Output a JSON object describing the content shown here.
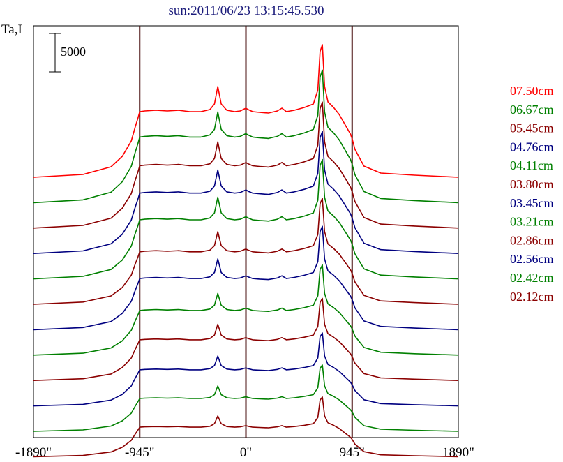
{
  "chart_data": {
    "type": "line",
    "title": "sun:2011/06/23 13:15:45.530",
    "ylabel": "Ta,I",
    "xlabel": "",
    "x_ticks": [
      "-1890\"",
      "-945\"",
      "0\"",
      "945\"",
      "1890\""
    ],
    "x_tick_values": [
      -1890,
      -945,
      0,
      945,
      1890
    ],
    "xlim": [
      -1890,
      1890
    ],
    "vertical_lines_at": [
      -945,
      0,
      945
    ],
    "scale_bar": {
      "label": "5000",
      "value": 5000
    },
    "profile_shape": {
      "x": [
        -1890,
        -1450,
        -1200,
        -1100,
        -1020,
        -985,
        -960,
        -945,
        -900,
        -800,
        -700,
        -600,
        -500,
        -400,
        -320,
        -280,
        -250,
        -220,
        -170,
        -100,
        -50,
        0,
        20,
        60,
        120,
        200,
        280,
        320,
        360,
        430,
        520,
        600,
        640,
        660,
        680,
        700,
        730,
        780,
        830,
        880,
        930,
        945,
        970,
        1050,
        1200,
        1500,
        1890
      ],
      "y": [
        0.0,
        0.04,
        0.15,
        0.3,
        0.52,
        0.72,
        0.85,
        0.94,
        0.95,
        0.96,
        0.95,
        0.96,
        0.94,
        0.94,
        0.97,
        1.05,
        1.3,
        1.05,
        0.96,
        0.94,
        0.95,
        0.99,
        0.97,
        0.94,
        0.93,
        0.92,
        0.95,
        0.99,
        0.94,
        0.96,
        1.0,
        1.05,
        1.25,
        1.8,
        1.9,
        1.3,
        1.08,
        1.0,
        0.9,
        0.76,
        0.62,
        0.55,
        0.4,
        0.16,
        0.06,
        0.03,
        0.0
      ]
    },
    "series": [
      {
        "name": "07.50cm",
        "color": "#ff0000",
        "amplitude": 1.0,
        "baseline": 0.0
      },
      {
        "name": "06.67cm",
        "color": "#008000",
        "amplitude": 1.0,
        "baseline": 0.0
      },
      {
        "name": "05.45cm",
        "color": "#8b0000",
        "amplitude": 0.95,
        "baseline": 0.0
      },
      {
        "name": "04.76cm",
        "color": "#000080",
        "amplitude": 0.92,
        "baseline": 0.0
      },
      {
        "name": "04.11cm",
        "color": "#008000",
        "amplitude": 0.9,
        "baseline": 0.0
      },
      {
        "name": "03.80cm",
        "color": "#8b0000",
        "amplitude": 0.8,
        "baseline": 0.0
      },
      {
        "name": "03.45cm",
        "color": "#000080",
        "amplitude": 0.78,
        "baseline": 0.0
      },
      {
        "name": "03.21cm",
        "color": "#008000",
        "amplitude": 0.68,
        "baseline": 0.0
      },
      {
        "name": "02.86cm",
        "color": "#8b0000",
        "amplitude": 0.62,
        "baseline": 0.0
      },
      {
        "name": "02.56cm",
        "color": "#000080",
        "amplitude": 0.55,
        "baseline": 0.0
      },
      {
        "name": "02.42cm",
        "color": "#008000",
        "amplitude": 0.5,
        "baseline": 0.0
      },
      {
        "name": "02.12cm",
        "color": "#8b0000",
        "amplitude": 0.45,
        "baseline": 0.0
      }
    ],
    "legend": "right",
    "grid": false
  }
}
